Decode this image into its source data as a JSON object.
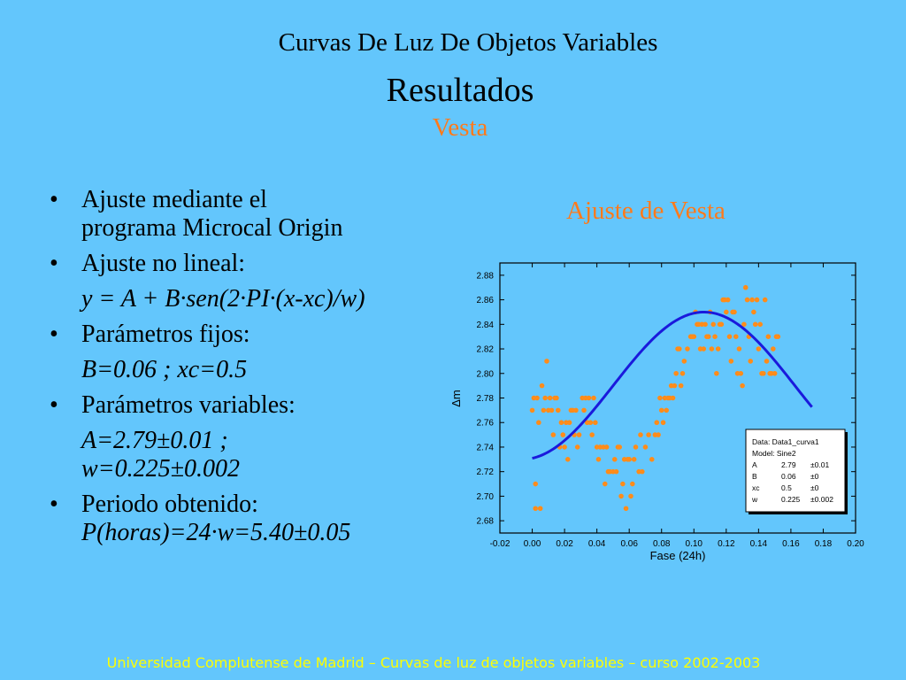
{
  "slide": {
    "title": "Curvas De Luz De Objetos Variables",
    "subtitle": "Resultados",
    "object": "Vesta",
    "chart_heading": "Ajuste de Vesta",
    "footer": "Universidad Complutense de Madrid – Curvas de luz de objetos variables  – curso 2002-2003",
    "bullets": [
      {
        "marker": "•",
        "text": "Ajuste mediante el"
      },
      {
        "marker": "",
        "text": "programa Microcal Origin"
      },
      {
        "marker": "•",
        "text": "Ajuste no lineal:"
      },
      {
        "marker": "",
        "text": "y = A + B·sen(2·PI·(x-xc)/w)"
      },
      {
        "marker": "•",
        "text": "Parámetros fijos:"
      },
      {
        "marker": "",
        "text": "B=0.06 ; xc=0.5"
      },
      {
        "marker": "•",
        "text": "Parámetros variables:"
      },
      {
        "marker": "",
        "text": "A=2.79±0.01 ;"
      },
      {
        "marker": "",
        "text": "w=0.225±0.002"
      },
      {
        "marker": "•",
        "text": "Periodo obtenido:"
      },
      {
        "marker": "",
        "text": "P(horas)=24·w=5.40±0.05"
      }
    ]
  },
  "chart_data": {
    "type": "scatter",
    "xlabel": "Fase (24h)",
    "ylabel": "Δm",
    "xlim": [
      -0.02,
      0.2
    ],
    "ylim": [
      2.67,
      2.89
    ],
    "xticks": [
      -0.02,
      0.0,
      0.02,
      0.04,
      0.06,
      0.08,
      0.1,
      0.12,
      0.14,
      0.16,
      0.18,
      0.2
    ],
    "xtick_labels": [
      "-0.02",
      "0.00",
      "0.02",
      "0.04",
      "0.06",
      "0.08",
      "0.10",
      "0.12",
      "0.14",
      "0.16",
      "0.18",
      "0.20"
    ],
    "yticks": [
      2.68,
      2.7,
      2.72,
      2.74,
      2.76,
      2.78,
      2.8,
      2.82,
      2.84,
      2.86,
      2.88
    ],
    "ytick_labels": [
      "2.68",
      "2.70",
      "2.72",
      "2.74",
      "2.76",
      "2.78",
      "2.80",
      "2.82",
      "2.84",
      "2.86",
      "2.88"
    ],
    "point_color": "#ff8c1a",
    "fit_color": "#1a1adc",
    "fit": {
      "model": "sine",
      "A": 2.79,
      "B": 0.06,
      "xc": 0.5,
      "w": 0.225,
      "x_range": [
        0.0,
        0.173
      ]
    },
    "points": [
      [
        0.0,
        2.77
      ],
      [
        0.001,
        2.78
      ],
      [
        0.002,
        2.71
      ],
      [
        0.002,
        2.69
      ],
      [
        0.003,
        2.78
      ],
      [
        0.004,
        2.76
      ],
      [
        0.005,
        2.69
      ],
      [
        0.006,
        2.79
      ],
      [
        0.007,
        2.77
      ],
      [
        0.008,
        2.78
      ],
      [
        0.009,
        2.81
      ],
      [
        0.01,
        2.77
      ],
      [
        0.011,
        2.78
      ],
      [
        0.012,
        2.77
      ],
      [
        0.013,
        2.75
      ],
      [
        0.014,
        2.78
      ],
      [
        0.015,
        2.78
      ],
      [
        0.016,
        2.77
      ],
      [
        0.017,
        2.74
      ],
      [
        0.018,
        2.76
      ],
      [
        0.019,
        2.75
      ],
      [
        0.02,
        2.74
      ],
      [
        0.021,
        2.76
      ],
      [
        0.022,
        2.73
      ],
      [
        0.023,
        2.76
      ],
      [
        0.024,
        2.77
      ],
      [
        0.025,
        2.77
      ],
      [
        0.026,
        2.75
      ],
      [
        0.027,
        2.77
      ],
      [
        0.028,
        2.74
      ],
      [
        0.029,
        2.75
      ],
      [
        0.031,
        2.78
      ],
      [
        0.032,
        2.77
      ],
      [
        0.033,
        2.78
      ],
      [
        0.034,
        2.76
      ],
      [
        0.035,
        2.78
      ],
      [
        0.036,
        2.76
      ],
      [
        0.037,
        2.75
      ],
      [
        0.038,
        2.78
      ],
      [
        0.039,
        2.76
      ],
      [
        0.04,
        2.74
      ],
      [
        0.041,
        2.73
      ],
      [
        0.042,
        2.74
      ],
      [
        0.044,
        2.74
      ],
      [
        0.045,
        2.71
      ],
      [
        0.046,
        2.74
      ],
      [
        0.047,
        2.72
      ],
      [
        0.048,
        2.72
      ],
      [
        0.05,
        2.72
      ],
      [
        0.051,
        2.73
      ],
      [
        0.052,
        2.72
      ],
      [
        0.053,
        2.74
      ],
      [
        0.054,
        2.74
      ],
      [
        0.055,
        2.7
      ],
      [
        0.056,
        2.71
      ],
      [
        0.057,
        2.73
      ],
      [
        0.058,
        2.69
      ],
      [
        0.059,
        2.73
      ],
      [
        0.06,
        2.73
      ],
      [
        0.061,
        2.7
      ],
      [
        0.062,
        2.71
      ],
      [
        0.063,
        2.73
      ],
      [
        0.064,
        2.74
      ],
      [
        0.066,
        2.72
      ],
      [
        0.067,
        2.75
      ],
      [
        0.068,
        2.72
      ],
      [
        0.07,
        2.74
      ],
      [
        0.072,
        2.75
      ],
      [
        0.074,
        2.73
      ],
      [
        0.076,
        2.75
      ],
      [
        0.077,
        2.76
      ],
      [
        0.078,
        2.75
      ],
      [
        0.079,
        2.78
      ],
      [
        0.08,
        2.77
      ],
      [
        0.081,
        2.76
      ],
      [
        0.082,
        2.78
      ],
      [
        0.083,
        2.77
      ],
      [
        0.084,
        2.78
      ],
      [
        0.085,
        2.78
      ],
      [
        0.086,
        2.79
      ],
      [
        0.087,
        2.78
      ],
      [
        0.088,
        2.79
      ],
      [
        0.089,
        2.8
      ],
      [
        0.09,
        2.82
      ],
      [
        0.091,
        2.82
      ],
      [
        0.092,
        2.79
      ],
      [
        0.093,
        2.8
      ],
      [
        0.094,
        2.81
      ],
      [
        0.096,
        2.82
      ],
      [
        0.098,
        2.83
      ],
      [
        0.099,
        2.83
      ],
      [
        0.1,
        2.83
      ],
      [
        0.101,
        2.85
      ],
      [
        0.102,
        2.84
      ],
      [
        0.103,
        2.84
      ],
      [
        0.104,
        2.82
      ],
      [
        0.105,
        2.84
      ],
      [
        0.106,
        2.82
      ],
      [
        0.107,
        2.84
      ],
      [
        0.108,
        2.83
      ],
      [
        0.109,
        2.83
      ],
      [
        0.11,
        2.85
      ],
      [
        0.111,
        2.82
      ],
      [
        0.112,
        2.84
      ],
      [
        0.113,
        2.83
      ],
      [
        0.114,
        2.8
      ],
      [
        0.115,
        2.82
      ],
      [
        0.116,
        2.84
      ],
      [
        0.117,
        2.84
      ],
      [
        0.118,
        2.86
      ],
      [
        0.119,
        2.86
      ],
      [
        0.12,
        2.85
      ],
      [
        0.121,
        2.86
      ],
      [
        0.122,
        2.83
      ],
      [
        0.123,
        2.81
      ],
      [
        0.124,
        2.85
      ],
      [
        0.125,
        2.85
      ],
      [
        0.126,
        2.83
      ],
      [
        0.127,
        2.8
      ],
      [
        0.128,
        2.82
      ],
      [
        0.129,
        2.8
      ],
      [
        0.13,
        2.79
      ],
      [
        0.131,
        2.84
      ],
      [
        0.132,
        2.87
      ],
      [
        0.133,
        2.86
      ],
      [
        0.134,
        2.83
      ],
      [
        0.135,
        2.81
      ],
      [
        0.136,
        2.86
      ],
      [
        0.137,
        2.85
      ],
      [
        0.138,
        2.84
      ],
      [
        0.139,
        2.86
      ],
      [
        0.14,
        2.82
      ],
      [
        0.141,
        2.84
      ],
      [
        0.142,
        2.8
      ],
      [
        0.143,
        2.8
      ],
      [
        0.144,
        2.86
      ],
      [
        0.145,
        2.81
      ],
      [
        0.146,
        2.83
      ],
      [
        0.147,
        2.8
      ],
      [
        0.148,
        2.8
      ],
      [
        0.149,
        2.82
      ],
      [
        0.15,
        2.8
      ],
      [
        0.151,
        2.83
      ],
      [
        0.152,
        2.83
      ]
    ]
  },
  "legend_box": {
    "lines": [
      [
        "Data: Data1_curva1",
        "",
        ""
      ],
      [
        "Model: Sine2",
        "",
        ""
      ],
      [
        "A",
        "2.79",
        "±0.01"
      ],
      [
        "B",
        "0.06",
        "±0"
      ],
      [
        "xc",
        "0.5",
        "±0"
      ],
      [
        "w",
        "0.225",
        "±0.002"
      ]
    ]
  }
}
